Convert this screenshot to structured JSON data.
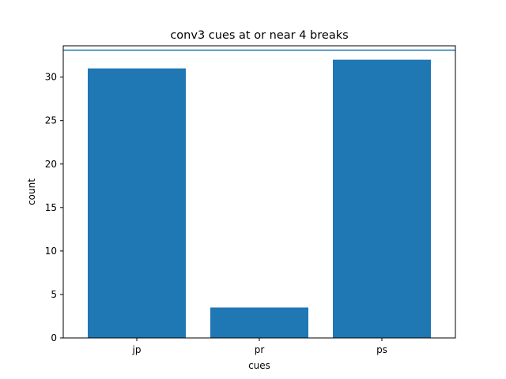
{
  "chart_data": {
    "type": "bar",
    "title": "conv3 cues at or near 4 breaks",
    "xlabel": "cues",
    "ylabel": "count",
    "categories": [
      "jp",
      "pr",
      "ps"
    ],
    "values": [
      31,
      3.5,
      32
    ],
    "ylim": [
      0,
      33.6
    ],
    "yticks": [
      "0",
      "5",
      "10",
      "15",
      "20",
      "25",
      "30"
    ],
    "reference_line": {
      "y": 33.1,
      "color": "#1f77b4"
    },
    "bar_color": "#1f77b4",
    "grid": false,
    "legend": "none"
  }
}
